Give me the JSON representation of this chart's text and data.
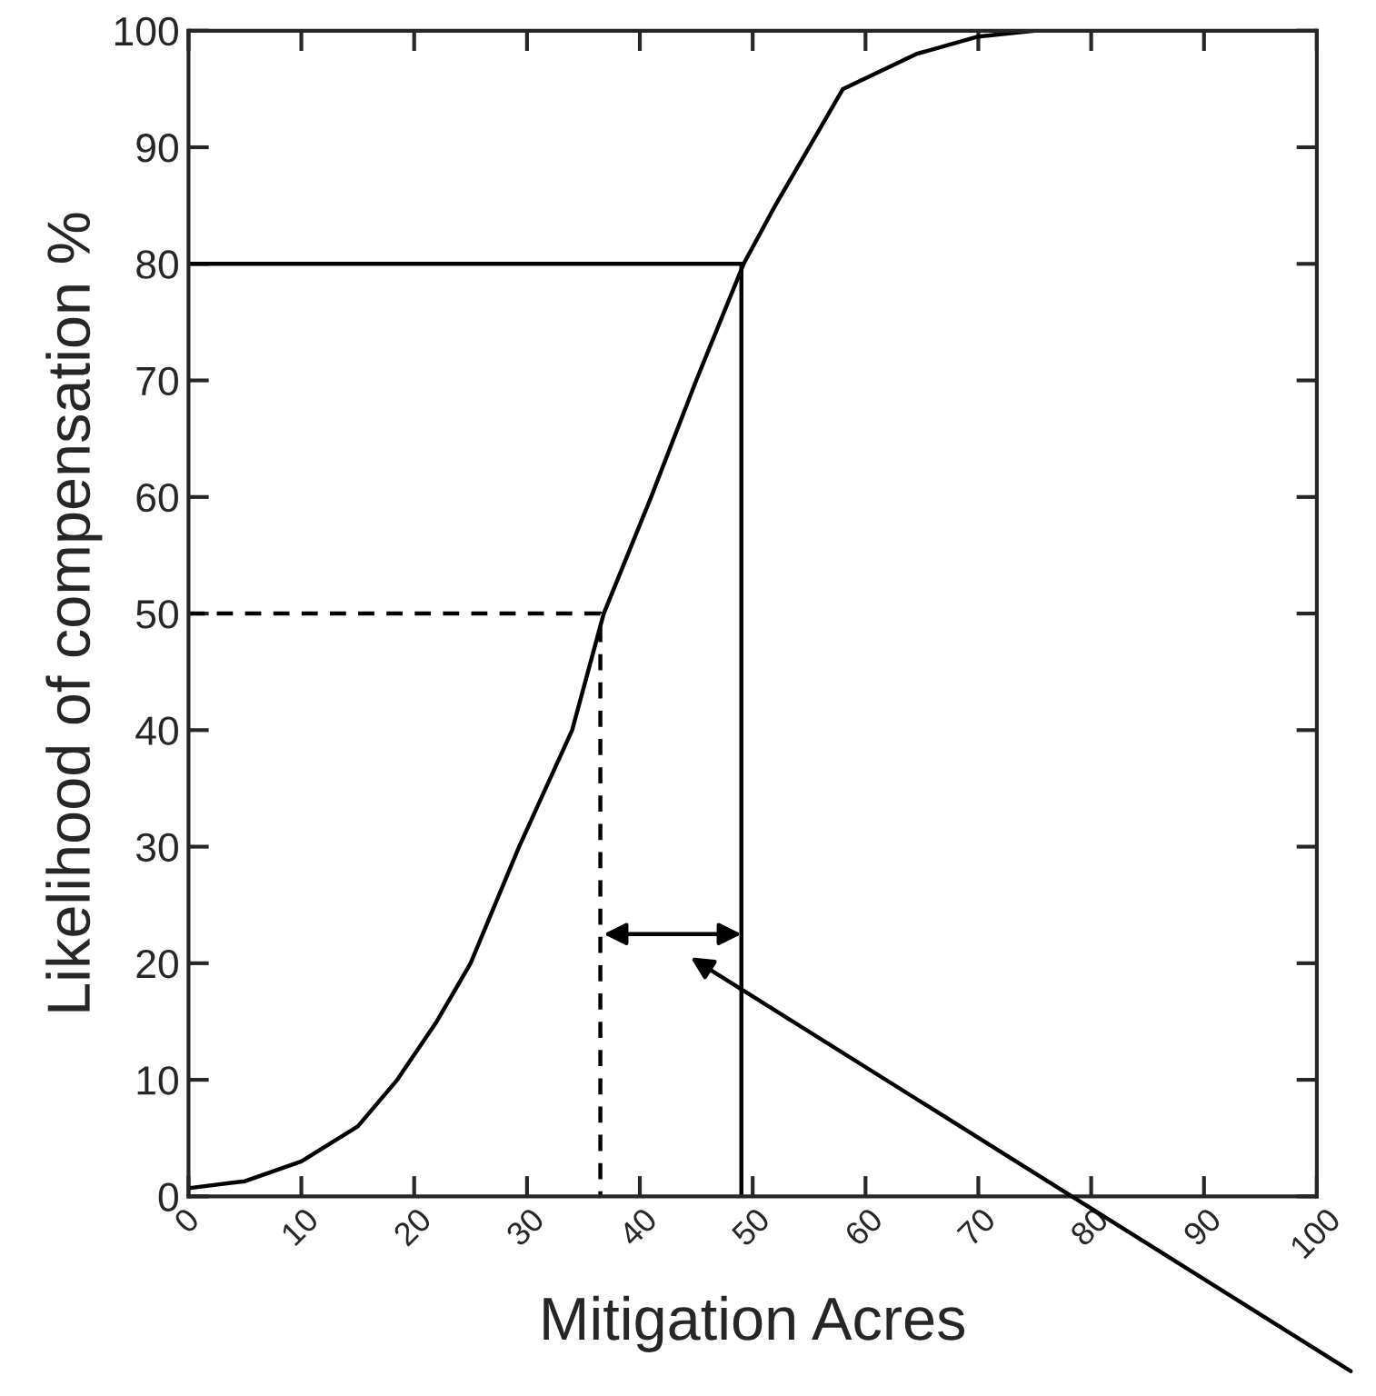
{
  "chart_data": {
    "type": "line",
    "xlabel": "Mitigation Acres",
    "ylabel": "Likelihood of compensation %",
    "series": [
      {
        "color": "#000000",
        "line_style": "solid",
        "x": [
          0,
          5,
          10,
          15,
          18.5,
          22,
          25,
          29.3,
          34,
          36.8,
          41,
          45,
          49.2,
          52,
          55,
          58,
          64.5,
          70,
          75,
          80
        ],
        "values": [
          0.7,
          1.3,
          3,
          6,
          10,
          15,
          20,
          30,
          40,
          50,
          60,
          70,
          80,
          85,
          90,
          95,
          98,
          99.5,
          100,
          100
        ]
      },
      {
        "color": "#000000",
        "line_style": "solid",
        "x": [
          0,
          49,
          49
        ],
        "values": [
          80,
          80,
          0
        ]
      },
      {
        "color": "#000000",
        "line_style": "dashed",
        "x": [
          0,
          36.5,
          36.5
        ],
        "values": [
          50,
          50,
          0
        ]
      }
    ],
    "xlim": [
      0,
      100
    ],
    "ylim": [
      0,
      100
    ],
    "xticks": [
      0,
      10,
      20,
      30,
      40,
      50,
      60,
      70,
      80,
      90,
      100
    ],
    "yticks": [
      0,
      10,
      20,
      30,
      40,
      50,
      60,
      70,
      80,
      90,
      100
    ],
    "grid": false,
    "legend": false,
    "marker": "none"
  }
}
